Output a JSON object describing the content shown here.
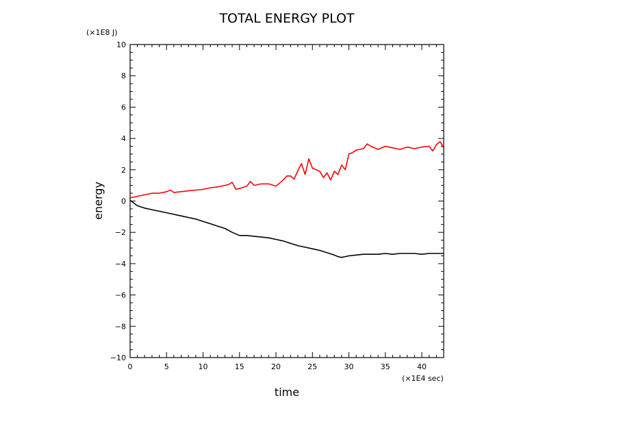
{
  "chart_data": {
    "type": "line",
    "title": "TOTAL ENERGY PLOT",
    "xlabel": "time",
    "ylabel": "energy",
    "x_unit": "(×1E4 sec)",
    "y_unit": "(×1E8 J)",
    "xlim": [
      0,
      43
    ],
    "ylim": [
      -10,
      10
    ],
    "xticks": [
      0,
      5,
      10,
      15,
      20,
      25,
      30,
      35,
      40
    ],
    "yticks": [
      -10,
      -8,
      -6,
      -4,
      -2,
      0,
      2,
      4,
      6,
      8,
      10
    ],
    "grid": false,
    "legend": null,
    "series": [
      {
        "color": "#ff0000",
        "x": [
          0,
          1,
          2,
          3,
          4,
          5,
          5.5,
          6,
          7,
          8,
          9,
          10,
          11,
          12,
          13,
          13.5,
          14,
          14.5,
          15,
          16,
          16.5,
          17,
          18,
          19,
          20,
          21,
          21.5,
          22,
          22.5,
          23,
          23.5,
          24,
          24.5,
          25,
          25.5,
          26,
          26.5,
          27,
          27.5,
          28,
          28.5,
          29,
          29.5,
          30,
          30.5,
          31,
          32,
          32.5,
          33,
          34,
          35,
          36,
          37,
          38,
          39,
          40,
          41,
          41.5,
          42,
          42.5,
          43
        ],
        "y": [
          0.2,
          0.3,
          0.4,
          0.5,
          0.5,
          0.6,
          0.7,
          0.55,
          0.6,
          0.65,
          0.7,
          0.75,
          0.85,
          0.9,
          1.0,
          1.05,
          1.2,
          0.75,
          0.8,
          0.95,
          1.25,
          1.0,
          1.1,
          1.1,
          0.95,
          1.35,
          1.6,
          1.6,
          1.4,
          1.95,
          2.4,
          1.7,
          2.7,
          2.1,
          2.0,
          1.9,
          1.5,
          1.8,
          1.35,
          1.9,
          1.7,
          2.3,
          2.0,
          3.0,
          3.1,
          3.25,
          3.35,
          3.65,
          3.5,
          3.3,
          3.5,
          3.4,
          3.3,
          3.45,
          3.35,
          3.45,
          3.5,
          3.2,
          3.6,
          3.8,
          3.4
        ]
      },
      {
        "color": "#000000",
        "x": [
          0,
          1,
          2,
          3,
          4,
          5,
          6,
          7,
          8,
          9,
          10,
          11,
          12,
          13,
          14,
          15,
          16,
          17,
          18,
          19,
          20,
          21,
          22,
          23,
          24,
          25,
          26,
          27,
          28,
          28.5,
          29,
          29.5,
          30,
          31,
          32,
          33,
          34,
          35,
          36,
          37,
          38,
          39,
          40,
          41,
          42,
          43
        ],
        "y": [
          0.05,
          -0.3,
          -0.45,
          -0.55,
          -0.65,
          -0.75,
          -0.85,
          -0.95,
          -1.05,
          -1.15,
          -1.3,
          -1.45,
          -1.6,
          -1.75,
          -2.0,
          -2.2,
          -2.2,
          -2.25,
          -2.3,
          -2.35,
          -2.45,
          -2.55,
          -2.7,
          -2.85,
          -2.95,
          -3.05,
          -3.15,
          -3.3,
          -3.45,
          -3.55,
          -3.6,
          -3.55,
          -3.5,
          -3.45,
          -3.4,
          -3.4,
          -3.4,
          -3.35,
          -3.4,
          -3.35,
          -3.35,
          -3.35,
          -3.4,
          -3.35,
          -3.35,
          -3.35
        ]
      }
    ]
  }
}
